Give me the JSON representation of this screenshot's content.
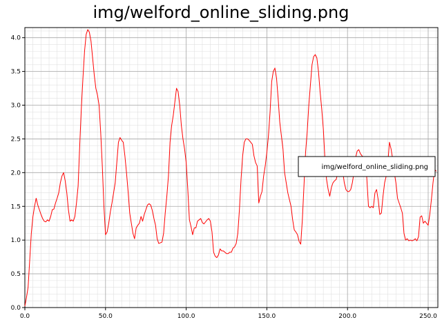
{
  "chart_data": {
    "type": "line",
    "title": "img/welford_online_sliding.png",
    "xlabel": "",
    "ylabel": "",
    "xlim": [
      0,
      256
    ],
    "ylim": [
      0,
      4.15
    ],
    "x_ticks": [
      "0.0",
      "50.0",
      "100.0",
      "150.0",
      "200.0",
      "250.0"
    ],
    "y_ticks": [
      "0.0",
      "0.5",
      "1.0",
      "1.5",
      "2.0",
      "2.5",
      "3.0",
      "3.5",
      "4.0"
    ],
    "grid": true,
    "legend_position": "right",
    "series": [
      {
        "name": "img/welford_online_sliding.png",
        "color": "#ff0000",
        "points": [
          [
            0,
            0.02
          ],
          [
            1,
            0.15
          ],
          [
            2,
            0.3
          ],
          [
            3,
            0.7
          ],
          [
            4,
            1.1
          ],
          [
            5,
            1.35
          ],
          [
            6,
            1.5
          ],
          [
            7,
            1.62
          ],
          [
            8,
            1.52
          ],
          [
            9,
            1.45
          ],
          [
            10,
            1.38
          ],
          [
            11,
            1.32
          ],
          [
            12,
            1.28
          ],
          [
            13,
            1.27
          ],
          [
            14,
            1.3
          ],
          [
            15,
            1.28
          ],
          [
            16,
            1.35
          ],
          [
            17,
            1.45
          ],
          [
            18,
            1.46
          ],
          [
            19,
            1.55
          ],
          [
            20,
            1.62
          ],
          [
            21,
            1.7
          ],
          [
            22,
            1.85
          ],
          [
            23,
            1.95
          ],
          [
            24,
            2.0
          ],
          [
            25,
            1.88
          ],
          [
            26,
            1.7
          ],
          [
            27,
            1.45
          ],
          [
            28,
            1.28
          ],
          [
            29,
            1.3
          ],
          [
            30,
            1.28
          ],
          [
            31,
            1.35
          ],
          [
            32,
            1.55
          ],
          [
            33,
            1.8
          ],
          [
            34,
            2.4
          ],
          [
            35,
            2.95
          ],
          [
            36,
            3.4
          ],
          [
            37,
            3.8
          ],
          [
            38,
            4.05
          ],
          [
            39,
            4.12
          ],
          [
            40,
            4.08
          ],
          [
            41,
            3.95
          ],
          [
            42,
            3.7
          ],
          [
            43,
            3.45
          ],
          [
            44,
            3.25
          ],
          [
            45,
            3.15
          ],
          [
            46,
            3.0
          ],
          [
            47,
            2.6
          ],
          [
            48,
            2.1
          ],
          [
            49,
            1.5
          ],
          [
            50,
            1.08
          ],
          [
            51,
            1.12
          ],
          [
            52,
            1.25
          ],
          [
            53,
            1.42
          ],
          [
            54,
            1.55
          ],
          [
            55,
            1.7
          ],
          [
            56,
            1.85
          ],
          [
            57,
            2.15
          ],
          [
            58,
            2.45
          ],
          [
            59,
            2.52
          ],
          [
            60,
            2.48
          ],
          [
            61,
            2.45
          ],
          [
            62,
            2.25
          ],
          [
            63,
            2.0
          ],
          [
            64,
            1.72
          ],
          [
            65,
            1.4
          ],
          [
            66,
            1.25
          ],
          [
            67,
            1.1
          ],
          [
            68,
            1.02
          ],
          [
            69,
            1.18
          ],
          [
            70,
            1.22
          ],
          [
            71,
            1.25
          ],
          [
            72,
            1.35
          ],
          [
            73,
            1.28
          ],
          [
            74,
            1.38
          ],
          [
            75,
            1.45
          ],
          [
            76,
            1.52
          ],
          [
            77,
            1.54
          ],
          [
            78,
            1.52
          ],
          [
            79,
            1.44
          ],
          [
            80,
            1.32
          ],
          [
            81,
            1.22
          ],
          [
            82,
            1.02
          ],
          [
            83,
            0.95
          ],
          [
            84,
            0.96
          ],
          [
            85,
            0.97
          ],
          [
            86,
            1.1
          ],
          [
            87,
            1.4
          ],
          [
            88,
            1.65
          ],
          [
            89,
            1.95
          ],
          [
            90,
            2.45
          ],
          [
            91,
            2.7
          ],
          [
            92,
            2.85
          ],
          [
            93,
            3.05
          ],
          [
            94,
            3.25
          ],
          [
            95,
            3.2
          ],
          [
            96,
            3.0
          ],
          [
            97,
            2.7
          ],
          [
            98,
            2.5
          ],
          [
            99,
            2.35
          ],
          [
            100,
            2.15
          ],
          [
            101,
            1.75
          ],
          [
            102,
            1.3
          ],
          [
            103,
            1.2
          ],
          [
            104,
            1.08
          ],
          [
            105,
            1.18
          ],
          [
            106,
            1.18
          ],
          [
            107,
            1.28
          ],
          [
            108,
            1.3
          ],
          [
            109,
            1.32
          ],
          [
            110,
            1.26
          ],
          [
            111,
            1.24
          ],
          [
            112,
            1.27
          ],
          [
            113,
            1.3
          ],
          [
            114,
            1.32
          ],
          [
            115,
            1.28
          ],
          [
            116,
            1.12
          ],
          [
            117,
            0.82
          ],
          [
            118,
            0.76
          ],
          [
            119,
            0.74
          ],
          [
            120,
            0.78
          ],
          [
            121,
            0.87
          ],
          [
            122,
            0.84
          ],
          [
            123,
            0.84
          ],
          [
            124,
            0.82
          ],
          [
            125,
            0.8
          ],
          [
            126,
            0.8
          ],
          [
            127,
            0.82
          ],
          [
            128,
            0.82
          ],
          [
            129,
            0.88
          ],
          [
            130,
            0.9
          ],
          [
            131,
            0.95
          ],
          [
            132,
            1.1
          ],
          [
            133,
            1.45
          ],
          [
            134,
            1.9
          ],
          [
            135,
            2.25
          ],
          [
            136,
            2.45
          ],
          [
            137,
            2.5
          ],
          [
            138,
            2.5
          ],
          [
            139,
            2.48
          ],
          [
            140,
            2.45
          ],
          [
            141,
            2.42
          ],
          [
            142,
            2.25
          ],
          [
            143,
            2.15
          ],
          [
            144,
            2.1
          ],
          [
            145,
            1.55
          ],
          [
            146,
            1.65
          ],
          [
            147,
            1.72
          ],
          [
            148,
            1.95
          ],
          [
            149,
            2.1
          ],
          [
            150,
            2.3
          ],
          [
            151,
            2.55
          ],
          [
            152,
            2.9
          ],
          [
            153,
            3.35
          ],
          [
            154,
            3.5
          ],
          [
            155,
            3.55
          ],
          [
            156,
            3.4
          ],
          [
            157,
            3.1
          ],
          [
            158,
            2.75
          ],
          [
            159,
            2.55
          ],
          [
            160,
            2.35
          ],
          [
            161,
            2.0
          ],
          [
            162,
            1.85
          ],
          [
            163,
            1.7
          ],
          [
            164,
            1.6
          ],
          [
            165,
            1.5
          ],
          [
            166,
            1.3
          ],
          [
            167,
            1.15
          ],
          [
            168,
            1.12
          ],
          [
            169,
            1.08
          ],
          [
            170,
            0.98
          ],
          [
            171,
            0.94
          ],
          [
            172,
            1.3
          ],
          [
            173,
            1.8
          ],
          [
            174,
            2.3
          ],
          [
            175,
            2.6
          ],
          [
            176,
            3.0
          ],
          [
            177,
            3.3
          ],
          [
            178,
            3.6
          ],
          [
            179,
            3.72
          ],
          [
            180,
            3.75
          ],
          [
            181,
            3.7
          ],
          [
            182,
            3.5
          ],
          [
            183,
            3.2
          ],
          [
            184,
            2.95
          ],
          [
            185,
            2.65
          ],
          [
            186,
            2.2
          ],
          [
            187,
            1.9
          ],
          [
            188,
            1.75
          ],
          [
            189,
            1.65
          ],
          [
            190,
            1.78
          ],
          [
            191,
            1.85
          ],
          [
            192,
            1.88
          ],
          [
            193,
            1.9
          ],
          [
            194,
            2.0
          ],
          [
            195,
            2.05
          ],
          [
            196,
            2.1
          ],
          [
            197,
            2.02
          ],
          [
            198,
            1.85
          ],
          [
            199,
            1.75
          ],
          [
            200,
            1.72
          ],
          [
            201,
            1.72
          ],
          [
            202,
            1.75
          ],
          [
            203,
            1.85
          ],
          [
            204,
            2.0
          ],
          [
            205,
            2.22
          ],
          [
            206,
            2.32
          ],
          [
            207,
            2.34
          ],
          [
            208,
            2.28
          ],
          [
            209,
            2.25
          ],
          [
            210,
            2.22
          ],
          [
            211,
            2.2
          ],
          [
            212,
            1.9
          ],
          [
            213,
            1.5
          ],
          [
            214,
            1.48
          ],
          [
            215,
            1.5
          ],
          [
            216,
            1.48
          ],
          [
            217,
            1.7
          ],
          [
            218,
            1.75
          ],
          [
            219,
            1.6
          ],
          [
            220,
            1.38
          ],
          [
            221,
            1.4
          ],
          [
            222,
            1.65
          ],
          [
            223,
            1.85
          ],
          [
            224,
            1.95
          ],
          [
            225,
            2.15
          ],
          [
            226,
            2.45
          ],
          [
            227,
            2.35
          ],
          [
            228,
            2.2
          ],
          [
            229,
            2.0
          ],
          [
            230,
            1.85
          ],
          [
            231,
            1.62
          ],
          [
            232,
            1.55
          ],
          [
            233,
            1.48
          ],
          [
            234,
            1.4
          ],
          [
            235,
            1.1
          ],
          [
            236,
            1.0
          ],
          [
            237,
            1.02
          ],
          [
            238,
            0.99
          ],
          [
            239,
            1.0
          ],
          [
            240,
            0.99
          ],
          [
            241,
            1.0
          ],
          [
            242,
            1.02
          ],
          [
            243,
            0.99
          ],
          [
            244,
            1.05
          ],
          [
            245,
            1.34
          ],
          [
            246,
            1.36
          ],
          [
            247,
            1.25
          ],
          [
            248,
            1.28
          ],
          [
            249,
            1.25
          ],
          [
            250,
            1.22
          ],
          [
            251,
            1.38
          ],
          [
            252,
            1.6
          ],
          [
            253,
            1.85
          ],
          [
            254,
            2.05
          ],
          [
            255,
            2.02
          ]
        ]
      }
    ]
  }
}
